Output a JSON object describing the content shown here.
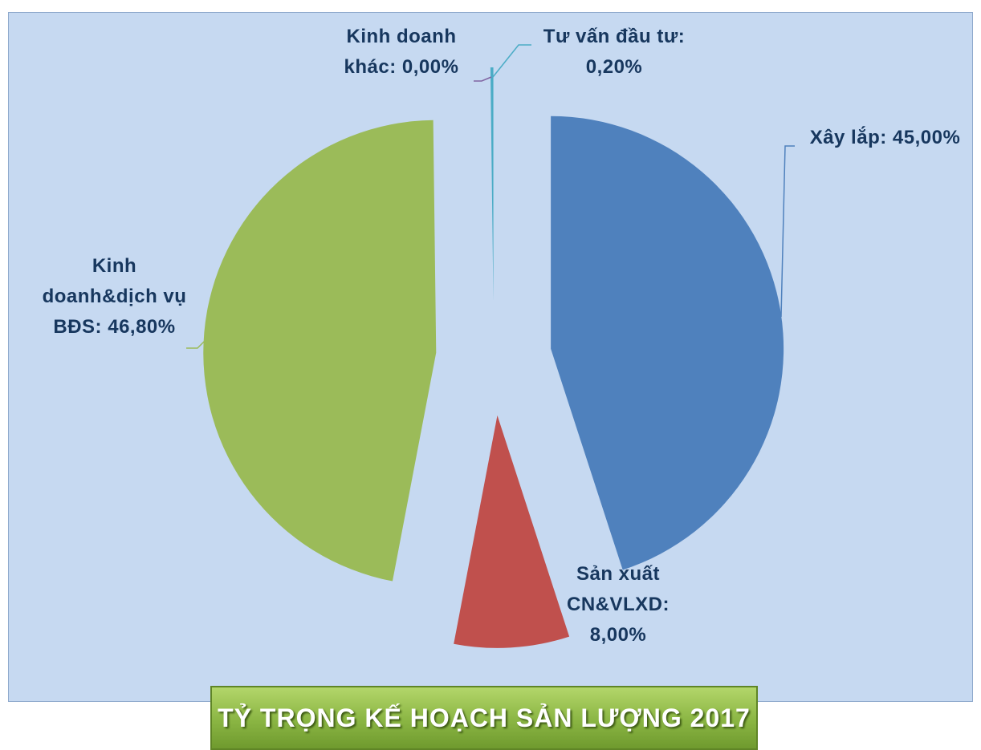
{
  "chart_data": {
    "type": "pie",
    "title": "TỶ TRỌNG KẾ HOẠCH SẢN LƯỢNG 2017",
    "categories": [
      "Xây lắp:",
      "Sản xuất CN&VLXD:",
      "Kinh doanh&dịch vụ BĐS:",
      "Kinh doanh khác:",
      "Tư vấn đầu tư:"
    ],
    "values": [
      45.0,
      8.0,
      46.8,
      0.0,
      0.2
    ],
    "value_labels": [
      "45,00%",
      "8,00%",
      "46,80%",
      "0,00%",
      "0,20%"
    ],
    "colors": [
      "#4f81bd",
      "#c0504d",
      "#9bbb59",
      "#8064a2",
      "#4bacc6"
    ]
  }
}
